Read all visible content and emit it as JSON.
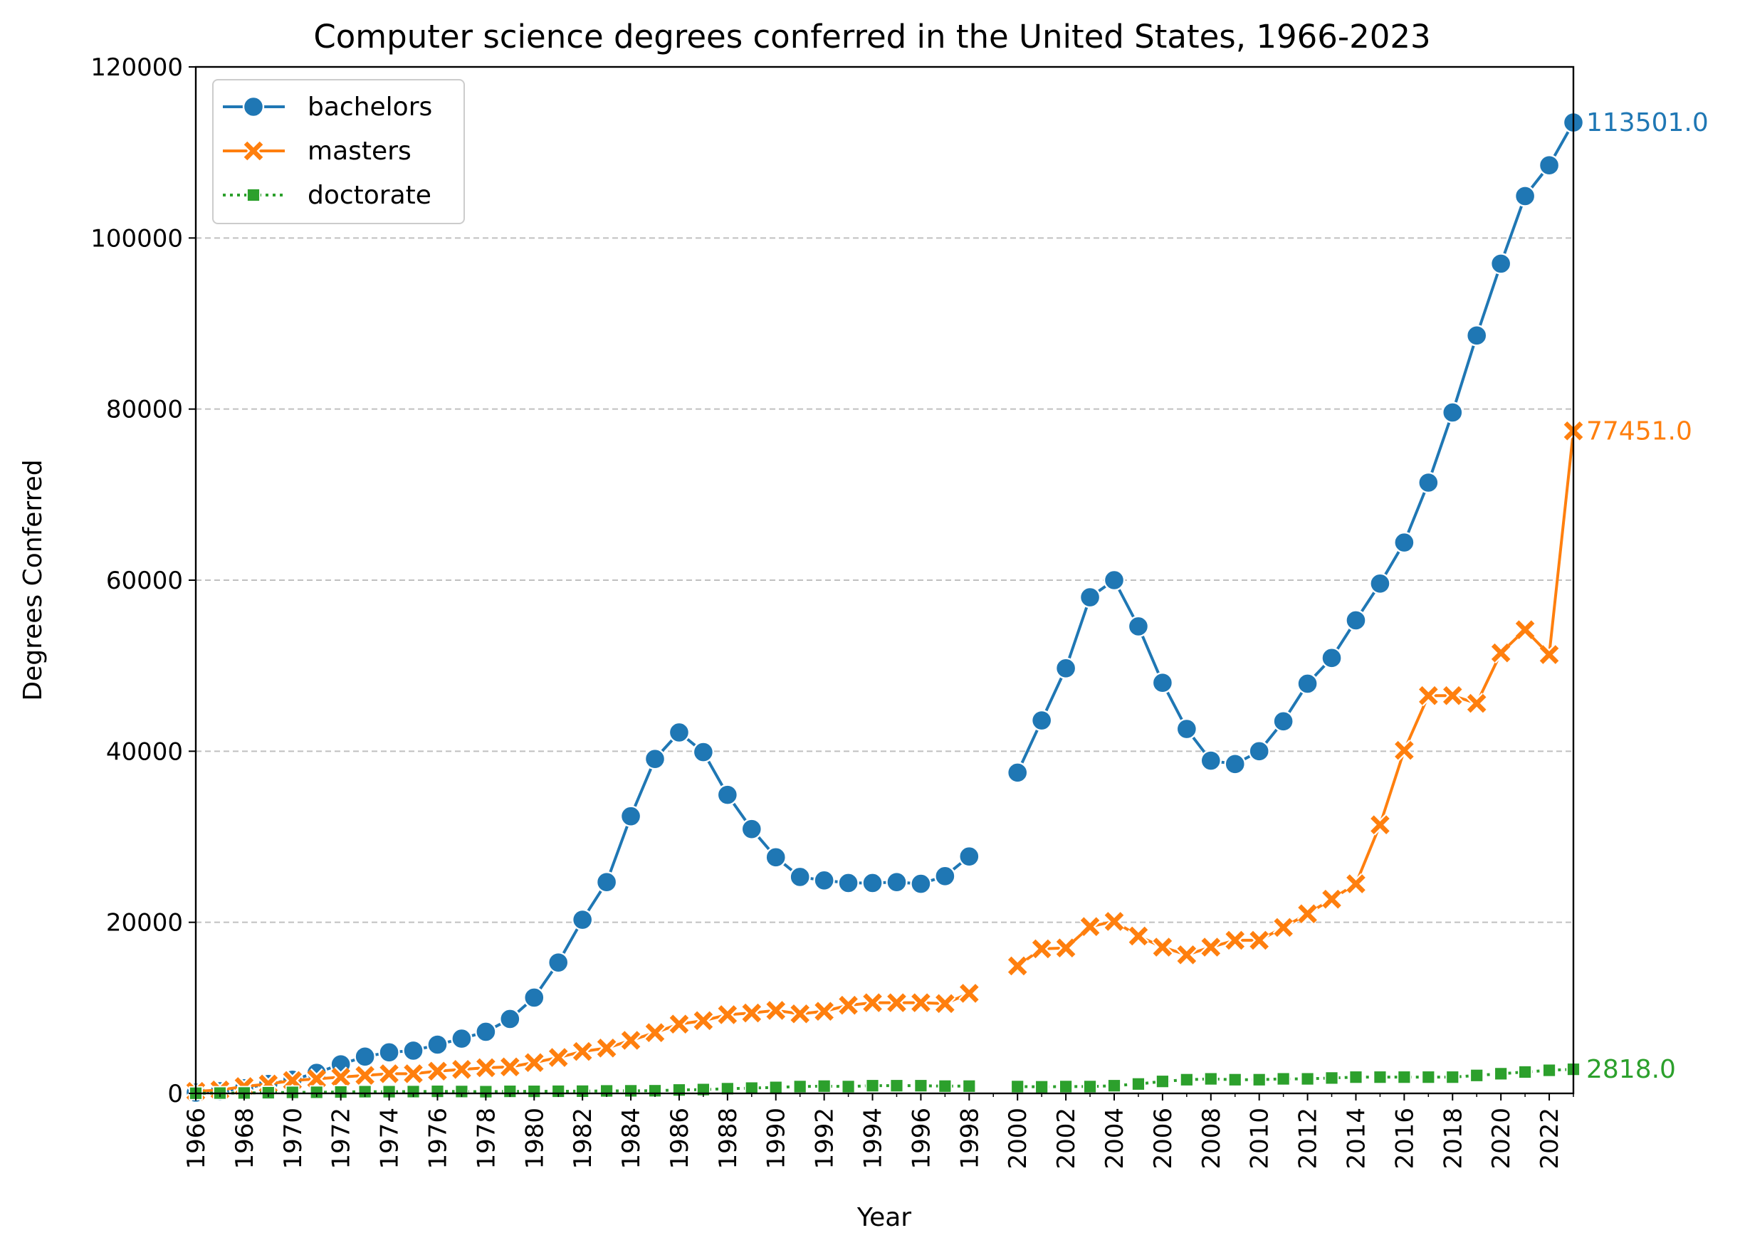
{
  "chart_data": {
    "type": "line",
    "title": "Computer science degrees conferred in the United States, 1966-2023",
    "xlabel": "Year",
    "ylabel": "Degrees Conferred",
    "xlim": [
      1966,
      2023
    ],
    "ylim": [
      0,
      120000
    ],
    "yticks": [
      "0",
      "20000",
      "40000",
      "60000",
      "80000",
      "100000",
      "120000"
    ],
    "xticks": [
      "1966",
      "1968",
      "1970",
      "1972",
      "1974",
      "1976",
      "1978",
      "1980",
      "1982",
      "1984",
      "1986",
      "1988",
      "1990",
      "1992",
      "1994",
      "1996",
      "1998",
      "2000",
      "2002",
      "2004",
      "2006",
      "2008",
      "2010",
      "2012",
      "2014",
      "2016",
      "2018",
      "2020",
      "2022"
    ],
    "grid": "horizontal dashed",
    "legend_position": "upper-left",
    "x": [
      1966,
      1967,
      1968,
      1969,
      1970,
      1971,
      1972,
      1973,
      1974,
      1975,
      1976,
      1977,
      1978,
      1979,
      1980,
      1981,
      1982,
      1983,
      1984,
      1985,
      1986,
      1987,
      1988,
      1989,
      1990,
      1991,
      1992,
      1993,
      1994,
      1995,
      1996,
      1997,
      1998,
      1999,
      2000,
      2001,
      2002,
      2003,
      2004,
      2005,
      2006,
      2007,
      2008,
      2009,
      2010,
      2011,
      2012,
      2013,
      2014,
      2015,
      2016,
      2017,
      2018,
      2019,
      2020,
      2021,
      2022,
      2023
    ],
    "series": [
      {
        "name": "bachelors",
        "color": "#1f77b4",
        "marker": "circle",
        "end_label": "113501.0",
        "values": [
          89,
          259,
          600,
          1100,
          1600,
          2400,
          3400,
          4300,
          4800,
          5000,
          5700,
          6400,
          7200,
          8700,
          11200,
          15300,
          20300,
          24700,
          32400,
          39100,
          42200,
          39900,
          34900,
          30900,
          27600,
          25300,
          24900,
          24600,
          24600,
          24700,
          24500,
          25400,
          27700,
          null,
          37500,
          43600,
          49700,
          58000,
          60000,
          54600,
          48000,
          42600,
          38900,
          38500,
          40000,
          43500,
          47900,
          50900,
          55300,
          59600,
          64400,
          71400,
          79600,
          88600,
          97000,
          104900,
          108500,
          113501
        ]
      },
      {
        "name": "masters",
        "color": "#ff7f0e",
        "marker": "x",
        "end_label": "77451.0",
        "values": [
          238,
          400,
          800,
          1100,
          1500,
          1700,
          1900,
          2100,
          2300,
          2300,
          2600,
          2800,
          3000,
          3100,
          3600,
          4200,
          4900,
          5300,
          6200,
          7100,
          8100,
          8500,
          9200,
          9400,
          9700,
          9300,
          9600,
          10300,
          10600,
          10600,
          10600,
          10500,
          11700,
          null,
          14900,
          16900,
          17000,
          19500,
          20100,
          18400,
          17100,
          16200,
          17100,
          17900,
          17900,
          19400,
          21000,
          22700,
          24500,
          31400,
          40100,
          46500,
          46500,
          45600,
          51500,
          54200,
          51300,
          77451
        ]
      },
      {
        "name": "doctorate",
        "color": "#2ca02c",
        "marker": "square",
        "end_label": "2818.0",
        "values": [
          19,
          38,
          50,
          80,
          120,
          130,
          160,
          200,
          200,
          210,
          240,
          220,
          200,
          240,
          240,
          250,
          260,
          290,
          300,
          310,
          400,
          450,
          550,
          620,
          700,
          800,
          850,
          800,
          900,
          900,
          900,
          850,
          850,
          null,
          800,
          770,
          800,
          800,
          900,
          1100,
          1400,
          1600,
          1700,
          1600,
          1600,
          1700,
          1700,
          1800,
          1900,
          1900,
          1900,
          1900,
          1900,
          2100,
          2300,
          2500,
          2700,
          2818
        ]
      }
    ]
  }
}
